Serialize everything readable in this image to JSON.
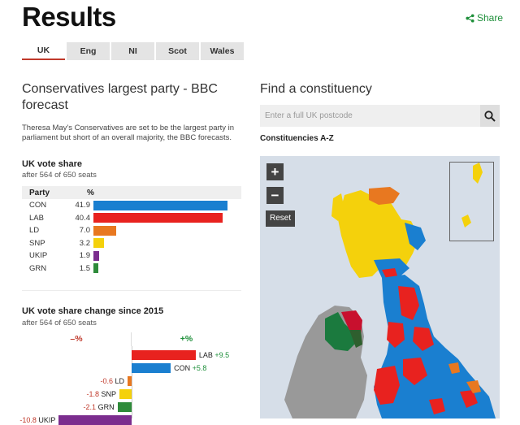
{
  "page": {
    "title": "Results",
    "share_label": "Share"
  },
  "tabs": [
    {
      "label": "UK",
      "active": true
    },
    {
      "label": "Eng",
      "active": false
    },
    {
      "label": "NI",
      "active": false
    },
    {
      "label": "Scot",
      "active": false
    },
    {
      "label": "Wales",
      "active": false
    }
  ],
  "forecast": {
    "headline": "Conservatives largest party - BBC forecast",
    "summary": "Theresa May's Conservatives are set to be the largest party in parliament but short of an overall majority, the BBC forecasts."
  },
  "vote_share": {
    "title": "UK vote share",
    "subtitle": "after 564 of 650 seats",
    "col_party": "Party",
    "col_pct": "%",
    "rows": [
      {
        "party": "CON",
        "value": "41.9",
        "num": 41.9,
        "color": "#1a7fd0"
      },
      {
        "party": "LAB",
        "value": "40.4",
        "num": 40.4,
        "color": "#e8221f"
      },
      {
        "party": "LD",
        "value": "7.0",
        "num": 7.0,
        "color": "#e87820"
      },
      {
        "party": "SNP",
        "value": "3.2",
        "num": 3.2,
        "color": "#f4d10c"
      },
      {
        "party": "UKIP",
        "value": "1.9",
        "num": 1.9,
        "color": "#7b2d8e"
      },
      {
        "party": "GRN",
        "value": "1.5",
        "num": 1.5,
        "color": "#2e8b3a"
      }
    ]
  },
  "vote_change": {
    "title": "UK vote share change since 2015",
    "subtitle": "after 564 of 650 seats",
    "neg_label": "–%",
    "pos_label": "+%",
    "rows": [
      {
        "party": "LAB",
        "change": "+9.5",
        "num": 9.5,
        "color": "#e8221f"
      },
      {
        "party": "CON",
        "change": "+5.8",
        "num": 5.8,
        "color": "#1a7fd0"
      },
      {
        "party": "LD",
        "change": "-0.6",
        "num": -0.6,
        "color": "#e87820"
      },
      {
        "party": "SNP",
        "change": "-1.8",
        "num": -1.8,
        "color": "#f4d10c"
      },
      {
        "party": "GRN",
        "change": "-2.1",
        "num": -2.1,
        "color": "#2e8b3a"
      },
      {
        "party": "UKIP",
        "change": "-10.8",
        "num": -10.8,
        "color": "#7b2d8e"
      }
    ]
  },
  "constituency": {
    "title": "Find a constituency",
    "search_placeholder": "Enter a full UK postcode",
    "az_link": "Constituencies A-Z"
  },
  "map": {
    "zoom_in": "+",
    "zoom_out": "−",
    "reset_label": "Reset",
    "colors": {
      "sea": "#d6dee8",
      "ireland": "#999999",
      "con": "#1a7fd0",
      "lab": "#e8221f",
      "snp": "#f4d10c",
      "ld": "#e87820",
      "dup": "#c8102e",
      "sf": "#1b7a3e"
    }
  }
}
